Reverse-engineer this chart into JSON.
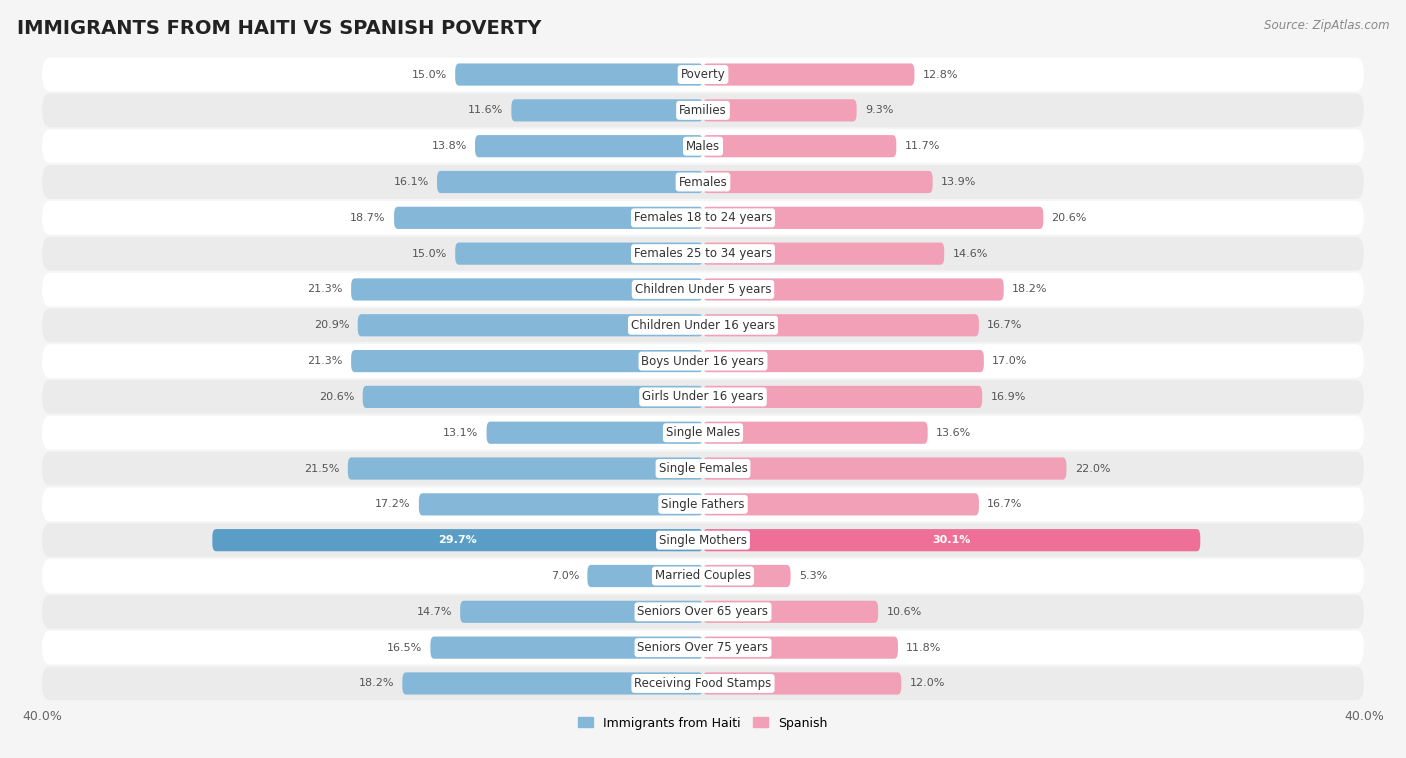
{
  "title": "IMMIGRANTS FROM HAITI VS SPANISH POVERTY",
  "source": "Source: ZipAtlas.com",
  "categories": [
    "Poverty",
    "Families",
    "Males",
    "Females",
    "Females 18 to 24 years",
    "Females 25 to 34 years",
    "Children Under 5 years",
    "Children Under 16 years",
    "Boys Under 16 years",
    "Girls Under 16 years",
    "Single Males",
    "Single Females",
    "Single Fathers",
    "Single Mothers",
    "Married Couples",
    "Seniors Over 65 years",
    "Seniors Over 75 years",
    "Receiving Food Stamps"
  ],
  "haiti_values": [
    15.0,
    11.6,
    13.8,
    16.1,
    18.7,
    15.0,
    21.3,
    20.9,
    21.3,
    20.6,
    13.1,
    21.5,
    17.2,
    29.7,
    7.0,
    14.7,
    16.5,
    18.2
  ],
  "spanish_values": [
    12.8,
    9.3,
    11.7,
    13.9,
    20.6,
    14.6,
    18.2,
    16.7,
    17.0,
    16.9,
    13.6,
    22.0,
    16.7,
    30.1,
    5.3,
    10.6,
    11.8,
    12.0
  ],
  "haiti_color": "#85b8d8",
  "spanish_color": "#f2a0b8",
  "haiti_highlight_color": "#5a9ec8",
  "spanish_highlight_color": "#ee7098",
  "row_color_light": "#ffffff",
  "row_color_dark": "#ebebeb",
  "background_color": "#f5f5f5",
  "separator_color": "#d8d8d8",
  "label_bg_color": "#ffffff",
  "axis_max": 40.0,
  "legend_haiti": "Immigrants from Haiti",
  "legend_spanish": "Spanish",
  "title_fontsize": 14,
  "label_fontsize": 8.5,
  "value_fontsize": 8.0,
  "highlight_categories": [
    "Single Mothers"
  ]
}
